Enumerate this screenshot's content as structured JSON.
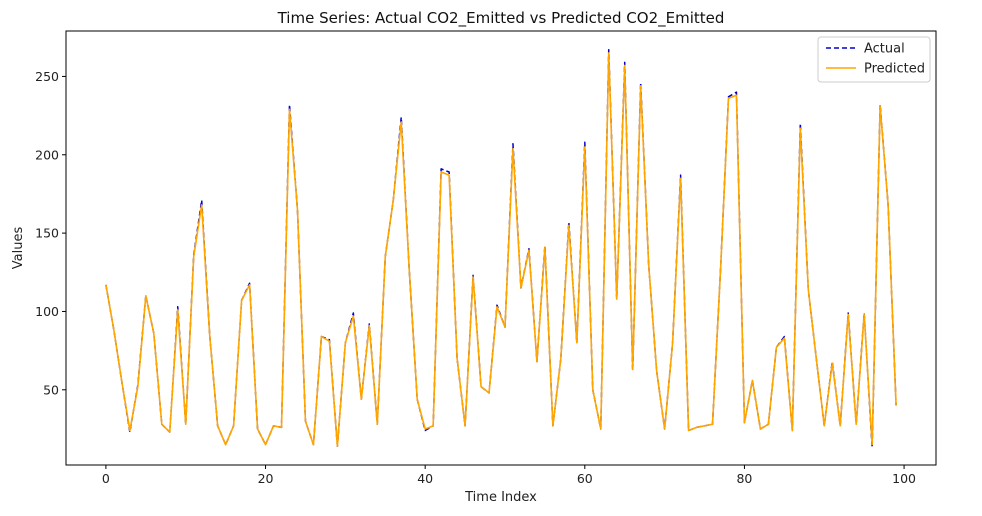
{
  "chart_data": {
    "type": "line",
    "title": "Time Series: Actual CO2_Emitted   vs Predicted CO2_Emitted",
    "xlabel": "Time Index",
    "ylabel": "Values",
    "xlim": [
      -5,
      104
    ],
    "ylim": [
      2,
      279
    ],
    "x_ticks": [
      0,
      20,
      40,
      60,
      80,
      100
    ],
    "y_ticks": [
      50,
      100,
      150,
      200,
      250
    ],
    "grid": false,
    "legend_position": "top-right",
    "x": [
      0,
      1,
      2,
      3,
      4,
      5,
      6,
      7,
      8,
      9,
      10,
      11,
      12,
      13,
      14,
      15,
      16,
      17,
      18,
      19,
      20,
      21,
      22,
      23,
      24,
      25,
      26,
      27,
      28,
      29,
      30,
      31,
      32,
      33,
      34,
      35,
      36,
      37,
      38,
      39,
      40,
      41,
      42,
      43,
      44,
      45,
      46,
      47,
      48,
      49,
      50,
      51,
      52,
      53,
      54,
      55,
      56,
      57,
      58,
      59,
      60,
      61,
      62,
      63,
      64,
      65,
      66,
      67,
      68,
      69,
      70,
      71,
      72,
      73,
      74,
      75,
      76,
      77,
      78,
      79,
      80,
      81,
      82,
      83,
      84,
      85,
      86,
      87,
      88,
      89,
      90,
      91,
      92,
      93,
      94,
      95,
      96,
      97,
      98,
      99
    ],
    "series": [
      {
        "name": "Actual",
        "color": "#0000cc",
        "style": "dashed",
        "values": [
          117,
          88,
          55,
          23,
          53,
          110,
          86,
          28,
          23,
          103,
          28,
          136,
          171,
          85,
          27,
          15,
          27,
          107,
          118,
          25,
          15,
          27,
          26,
          232,
          165,
          30,
          15,
          84,
          82,
          14,
          80,
          99,
          44,
          92,
          28,
          135,
          171,
          224,
          127,
          44,
          24,
          27,
          191,
          189,
          70,
          27,
          123,
          52,
          48,
          104,
          90,
          207,
          115,
          140,
          68,
          142,
          27,
          70,
          157,
          80,
          208,
          50,
          25,
          267,
          108,
          259,
          62,
          246,
          130,
          62,
          25,
          80,
          187,
          24,
          26,
          27,
          28,
          126,
          237,
          240,
          29,
          56,
          25,
          28,
          77,
          84,
          24,
          220,
          114,
          70,
          27,
          68,
          27,
          99,
          28,
          99,
          13,
          232,
          168,
          40
        ]
      },
      {
        "name": "Predicted",
        "color": "#ffa500",
        "style": "solid",
        "values": [
          117,
          88,
          55,
          24,
          52,
          110,
          86,
          28,
          23,
          101,
          28,
          135,
          168,
          85,
          27,
          15,
          27,
          107,
          117,
          25,
          15,
          27,
          26,
          229,
          165,
          30,
          15,
          84,
          81,
          14,
          80,
          97,
          44,
          91,
          28,
          135,
          171,
          221,
          127,
          44,
          25,
          27,
          189,
          187,
          70,
          27,
          122,
          52,
          48,
          103,
          90,
          204,
          115,
          139,
          68,
          141,
          27,
          70,
          155,
          80,
          205,
          50,
          25,
          265,
          108,
          257,
          63,
          244,
          130,
          62,
          25,
          80,
          185,
          24,
          26,
          27,
          28,
          126,
          236,
          238,
          29,
          56,
          25,
          28,
          77,
          83,
          24,
          217,
          114,
          70,
          27,
          67,
          27,
          98,
          28,
          98,
          15,
          231,
          168,
          40
        ]
      }
    ]
  }
}
